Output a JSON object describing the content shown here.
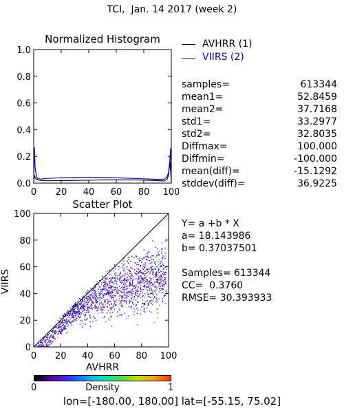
{
  "page_title": "TCI,  Jan. 14 2017 (week 2)",
  "histogram": {
    "title": "Normalized Histogram",
    "legend": [
      {
        "label": "AVHRR (1)",
        "color": "#000000"
      },
      {
        "label": "VIIRS (2)",
        "color": "#0000cc"
      }
    ],
    "ytick_labels": [
      "1.0",
      "0.8",
      "0.6",
      "0.4",
      "0.2",
      "0.0"
    ],
    "xtick_labels": [
      "0",
      "20",
      "40",
      "60",
      "80",
      "100"
    ]
  },
  "stats": [
    {
      "label": "samples=",
      "value": "613344"
    },
    {
      "label": "mean1=",
      "value": "52.8459"
    },
    {
      "label": "mean2=",
      "value": "37.7168"
    },
    {
      "label": "std1=",
      "value": "33.2977"
    },
    {
      "label": "std2=",
      "value": "32.8035"
    },
    {
      "label": "Diffmax=",
      "value": "100.000"
    },
    {
      "label": "Diffmin=",
      "value": "-100.000"
    },
    {
      "label": "mean(diff)=",
      "value": "-15.1292"
    },
    {
      "label": "stddev(diff)=",
      "value": "36.9225"
    }
  ],
  "scatter": {
    "title": "Scatter Plot",
    "xlabel": "AVHRR",
    "ylabel": "VIIRS",
    "ytick_labels": [
      "100",
      "80",
      "60",
      "40",
      "20",
      "0"
    ],
    "xtick_labels": [
      "0",
      "20",
      "40",
      "60",
      "80",
      "100"
    ]
  },
  "regression": {
    "equation": "Y= a +b * X",
    "a_text": "a= 18.143986",
    "b_text": "b= 0.37037501",
    "samples_text": "Samples= 613344",
    "cc_text": "CC=  0.3760",
    "rmse_text": "RMSE= 30.393933"
  },
  "colorbar": {
    "min_label": "0",
    "title": "Density",
    "max_label": "1",
    "colors": [
      "#000000",
      "#5b00a8",
      "#3030ff",
      "#00a0ff",
      "#00e0c0",
      "#40e040",
      "#c0e000",
      "#ffa000",
      "#ff3000"
    ]
  },
  "footer": {
    "lon_text": "lon=[-180.00, 180.00]",
    "lat_text": "lat=[-55.15, 75.02]"
  },
  "chart_data": [
    {
      "type": "line",
      "title": "Normalized Histogram",
      "xlabel": "",
      "ylabel": "",
      "xlim": [
        0,
        100
      ],
      "ylim": [
        0,
        1.0
      ],
      "grid": false,
      "legend_position": "top-right",
      "series": [
        {
          "name": "AVHRR (1)",
          "color": "#000000",
          "x": [
            0,
            0.5,
            1,
            2,
            3,
            5,
            10,
            20,
            30,
            40,
            50,
            60,
            70,
            80,
            90,
            95,
            97,
            98,
            99,
            99.5,
            100
          ],
          "y": [
            0.0,
            0.06,
            0.04,
            0.03,
            0.025,
            0.02,
            0.018,
            0.018,
            0.02,
            0.022,
            0.024,
            0.025,
            0.025,
            0.022,
            0.018,
            0.016,
            0.03,
            0.06,
            0.16,
            0.09,
            0.0
          ]
        },
        {
          "name": "VIIRS (2)",
          "color": "#0000cc",
          "x": [
            0,
            0.5,
            1,
            2,
            3,
            5,
            10,
            20,
            30,
            40,
            50,
            60,
            70,
            80,
            90,
            95,
            97,
            98,
            99,
            99.5,
            100
          ],
          "y": [
            0.0,
            0.27,
            0.12,
            0.05,
            0.035,
            0.03,
            0.035,
            0.04,
            0.042,
            0.043,
            0.042,
            0.04,
            0.036,
            0.032,
            0.028,
            0.03,
            0.05,
            0.08,
            0.18,
            0.26,
            0.0
          ]
        }
      ]
    },
    {
      "type": "scatter",
      "title": "Scatter Plot",
      "xlabel": "AVHRR",
      "ylabel": "VIIRS",
      "xlim": [
        0,
        100
      ],
      "ylim": [
        0,
        100
      ],
      "grid": false,
      "regression": {
        "a": 18.143986,
        "b": 0.37037501
      },
      "reference_line": "1:1",
      "point_cloud": {
        "x_center": 52.8459,
        "y_center": 37.7168,
        "x_range": [
          2,
          98
        ],
        "y_range": [
          0,
          80
        ],
        "colormap": "density"
      }
    }
  ]
}
